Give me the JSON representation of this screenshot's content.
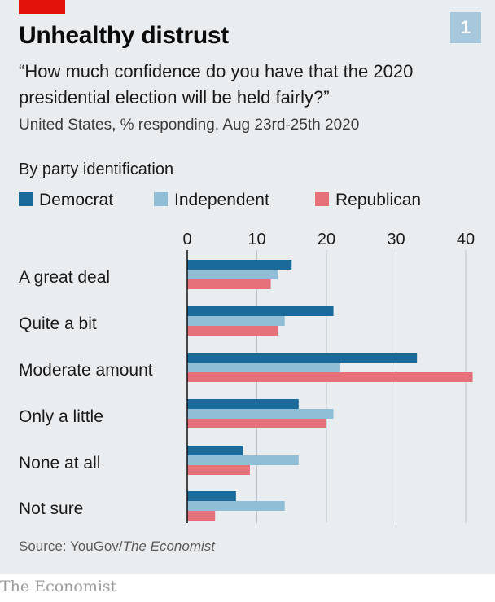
{
  "header": {
    "title": "Unhealthy distrust",
    "chart_number": "1",
    "subtitle": "“How much confidence do you have that the 2020 presidential election will be held fairly?”",
    "description": "United States, % responding, Aug 23rd-25th 2020",
    "group_label": "By party identification"
  },
  "footer": {
    "source_prefix": "Source: YouGov/",
    "source_publication": "The Economist",
    "brand": "The Economist"
  },
  "colors": {
    "accent_tag": "#e3120b",
    "democrat": "#1a6b9a",
    "independent": "#90bed6",
    "republican": "#e5717a",
    "axis": "#111111",
    "grid": "#b9c3cb"
  },
  "chart_data": {
    "type": "bar",
    "orientation": "horizontal",
    "categories": [
      "A great deal",
      "Quite a bit",
      "Moderate amount",
      "Only a little",
      "None at all",
      "Not sure"
    ],
    "series": [
      {
        "name": "Democrat",
        "values": [
          15,
          21,
          33,
          16,
          8,
          7
        ]
      },
      {
        "name": "Independent",
        "values": [
          13,
          14,
          22,
          21,
          16,
          14
        ]
      },
      {
        "name": "Republican",
        "values": [
          12,
          13,
          41,
          20,
          9,
          4
        ]
      }
    ],
    "xlim": [
      0,
      40
    ],
    "xticks": [
      0,
      10,
      20,
      30,
      40
    ],
    "xtick_labels": [
      "0",
      "10",
      "20",
      "30",
      "40"
    ],
    "grid": true,
    "legend_position": "top-left"
  }
}
